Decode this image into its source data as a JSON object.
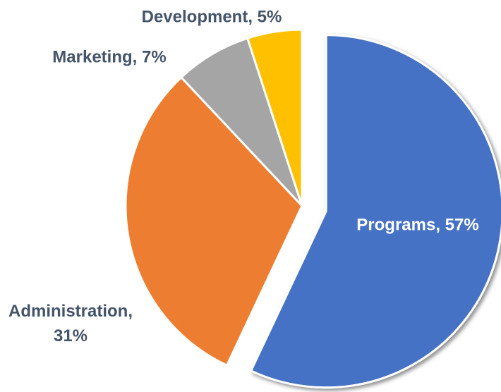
{
  "chart_data": {
    "type": "pie",
    "values": [
      57,
      31,
      7,
      5
    ],
    "value_labels": [
      "Programs, 57%",
      "Administration, 31%",
      "Marketing, 7%",
      "Development, 5%"
    ],
    "colors": [
      "#4472c4",
      "#ed7d31",
      "#a5a5a5",
      "#ffc000"
    ],
    "exploded": [
      true,
      false,
      false,
      false
    ]
  }
}
